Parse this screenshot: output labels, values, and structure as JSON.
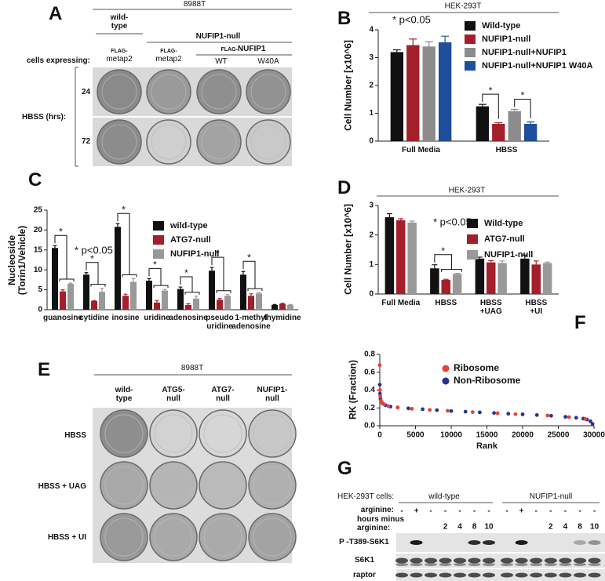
{
  "figure": {
    "panel_labels": [
      "A",
      "B",
      "C",
      "D",
      "E",
      "F",
      "G"
    ],
    "panel_a": {
      "cell_line": "8988T",
      "wild_type": "wild-type",
      "null": "NUFIP1-null",
      "cells_expressing": "cells expressing:",
      "columns": [
        {
          "tag": "FLAG-",
          "name": "metap2"
        },
        {
          "tag": "FLAG-",
          "name": "metap2"
        }
      ],
      "rescue": {
        "tag": "FLAG-",
        "name": "NUFIP1"
      },
      "rescue_columns": [
        "WT",
        "W40A"
      ],
      "rows": [
        "24",
        "72"
      ],
      "row_title": "HBSS (hrs):"
    },
    "panel_e": {
      "cell_line": "8988T",
      "columns": [
        "wild-type",
        "ATG5-null",
        "ATG7-null",
        "NUFIP1-null"
      ],
      "rows": [
        "HBSS",
        "HBSS + UAG",
        "HBSS + UI"
      ]
    },
    "panel_g": {
      "cells": "HEK-293T cells:",
      "groups": [
        "wild-type",
        "NUFIP1-null"
      ],
      "arginine_label": "arginine:",
      "arginine": [
        "-",
        "+",
        "-",
        "-",
        "-",
        "-",
        "-",
        "-",
        "+",
        "-",
        "-",
        "-",
        "-",
        "-"
      ],
      "hours_label": "hours minus\narginine:",
      "hours": [
        null,
        null,
        null,
        "2",
        "4",
        "8",
        "10",
        null,
        null,
        null,
        "2",
        "4",
        "8",
        "10"
      ],
      "blots": [
        "P -T389-S6K1",
        "S6K1",
        "raptor"
      ]
    }
  },
  "chart_data": [
    {
      "type": "bar",
      "title": "HEK-293T",
      "ylabel": "Cell Number [x10^6]",
      "categories": [
        "Full Media",
        "HBSS"
      ],
      "series": [
        {
          "name": "Wild-type",
          "color": "#111111",
          "values": [
            3.2,
            1.25
          ],
          "errors": [
            0.08,
            0.07
          ]
        },
        {
          "name": "NUFIP1-null",
          "color": "#a3202a",
          "values": [
            3.45,
            0.62
          ],
          "errors": [
            0.22,
            0.04
          ]
        },
        {
          "name": "NUFIP1-null+NUFIP1",
          "color": "#8c8c8c",
          "values": [
            3.4,
            1.08
          ],
          "errors": [
            0.17,
            0.06
          ]
        },
        {
          "name": "NUFIP1-null+NUFIP1 W40A",
          "color": "#1f4e9c",
          "values": [
            3.55,
            0.62
          ],
          "errors": [
            0.22,
            0.07
          ]
        }
      ],
      "ylim": [
        0,
        4
      ],
      "yticks": [
        0,
        1,
        2,
        3,
        4
      ],
      "annotation": "* p<0.05",
      "significance": [
        "*",
        "*"
      ],
      "legend": "upper right"
    },
    {
      "type": "bar",
      "ylabel": "Nucleoside\n(Torin1/Vehicle)",
      "categories": [
        "guanosine",
        "cytidine",
        "inosine",
        "uridine",
        "adenosine",
        "pseudo\nuridine",
        "1-methyl\nadenosine",
        "thymidine"
      ],
      "series": [
        {
          "name": "wild-type",
          "color": "#111111",
          "values": [
            15.5,
            8.8,
            20.8,
            7.3,
            5.2,
            9.8,
            8.8,
            1.2
          ],
          "errors": [
            0.6,
            0.5,
            0.8,
            0.5,
            0.5,
            0.8,
            0.8,
            0.1
          ]
        },
        {
          "name": "ATG7-null",
          "color": "#a3202a",
          "values": [
            4.6,
            2.2,
            3.5,
            1.8,
            1.2,
            2.5,
            3.5,
            1.5
          ],
          "errors": [
            0.4,
            0.1,
            0.4,
            0.5,
            0.3,
            0.3,
            0.5,
            0.1
          ]
        },
        {
          "name": "NUFIP1-null",
          "color": "#999999",
          "values": [
            6.5,
            4.5,
            7.0,
            4.8,
            2.8,
            3.5,
            4.1,
            1.2
          ],
          "errors": [
            0.2,
            0.9,
            0.8,
            0.3,
            0.6,
            0.3,
            0.2,
            0.1
          ]
        }
      ],
      "ylim": [
        0,
        25
      ],
      "yticks": [
        0,
        5,
        10,
        15,
        20,
        25
      ],
      "annotation": "* p<0.05",
      "significance": [
        "*",
        "*",
        "*",
        "*",
        "*",
        "*",
        "*"
      ],
      "legend": "upper right"
    },
    {
      "type": "bar",
      "title": "HEK-293T",
      "ylabel": "Cell Number [x10^6]",
      "categories": [
        "Full Media",
        "HBSS",
        "HBSS\n+UAG",
        "HBSS\n+UI"
      ],
      "series": [
        {
          "name": "Wild-type",
          "color": "#111111",
          "values": [
            2.6,
            0.87,
            1.2,
            1.2
          ],
          "errors": [
            0.12,
            0.12,
            0.05,
            0.12
          ]
        },
        {
          "name": "ATG7-null",
          "color": "#a3202a",
          "values": [
            2.5,
            0.48,
            1.07,
            1.0
          ],
          "errors": [
            0.05,
            0.02,
            0.06,
            0.12
          ]
        },
        {
          "name": "NUFIP1-null",
          "color": "#999999",
          "values": [
            2.42,
            0.68,
            1.05,
            1.05
          ],
          "errors": [
            0.05,
            0.02,
            0.07,
            0.03
          ]
        }
      ],
      "ylim": [
        0,
        3
      ],
      "yticks": [
        0,
        1,
        2,
        3
      ],
      "annotation": "* p<0.05",
      "significance": [
        "*"
      ],
      "legend": "upper right"
    },
    {
      "type": "scatter",
      "xlabel": "Rank",
      "ylabel": "RK (Fraction)",
      "series": [
        {
          "name": "Ribosome",
          "color": "#e8413a",
          "x": [
            0,
            20,
            60,
            150,
            300,
            600,
            1200,
            2500,
            4500,
            7000,
            9500,
            13000,
            16500,
            19000,
            23500,
            26500,
            28800
          ],
          "values": [
            0.68,
            0.4,
            0.33,
            0.28,
            0.26,
            0.24,
            0.22,
            0.205,
            0.19,
            0.178,
            0.168,
            0.153,
            0.14,
            0.13,
            0.115,
            0.097,
            0.075
          ]
        },
        {
          "name": "Non-Ribosome",
          "color": "#26348f",
          "x": [
            0,
            30,
            100,
            200,
            400,
            800,
            1500,
            2500,
            4000,
            6000,
            8000,
            10000,
            12000,
            14000,
            16000,
            18000,
            20000,
            22000,
            24000,
            26000,
            27500,
            28500,
            29000,
            29500,
            29800
          ],
          "values": [
            0.46,
            0.36,
            0.3,
            0.27,
            0.25,
            0.23,
            0.215,
            0.205,
            0.195,
            0.185,
            0.175,
            0.165,
            0.158,
            0.15,
            0.143,
            0.135,
            0.128,
            0.12,
            0.112,
            0.1,
            0.09,
            0.08,
            0.07,
            0.05,
            0.02
          ]
        }
      ],
      "xlim": [
        0,
        30000
      ],
      "xticks": [
        0,
        5000,
        10000,
        15000,
        20000,
        25000,
        30000
      ],
      "ylim": [
        0,
        0.8
      ],
      "yticks": [
        {
          "value": 0,
          "label": "0.0"
        },
        0.2,
        0.4,
        0.6,
        0.8
      ],
      "legend": "upper center"
    }
  ]
}
